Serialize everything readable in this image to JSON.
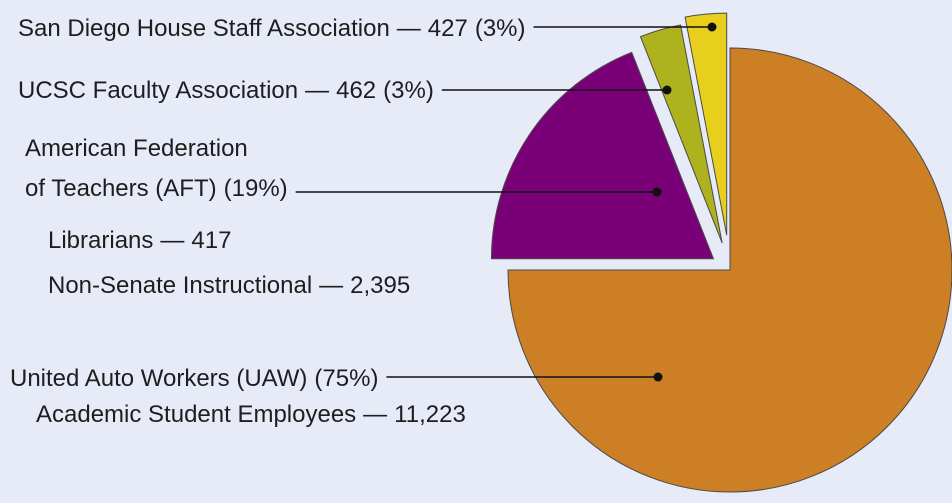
{
  "chart_data": {
    "type": "pie",
    "categories": [
      [
        "San Diego House Staff Association"
      ],
      [
        "UCSC Faculty Association"
      ],
      [
        "American Federation",
        "of Teachers (AFT)"
      ],
      [
        "United Auto Workers (UAW)"
      ]
    ],
    "values": [
      3,
      3,
      19,
      75
    ],
    "value_labels": [
      "(3%)",
      "(3%)",
      "(19%)",
      "(75%)"
    ],
    "colors": [
      "#e8cf1e",
      "#adb21e",
      "#7a0077",
      "#cc7f24"
    ],
    "separator": "—",
    "members": [
      [
        {
          "value": 427,
          "label": "427"
        }
      ],
      [
        {
          "value": 462,
          "label": "462"
        }
      ],
      [
        {
          "name": "Librarians",
          "value": 417,
          "label": "417"
        },
        {
          "name": "Non-Senate Instructional",
          "value": 2395,
          "label": "2,395"
        }
      ],
      [
        {
          "name": "Academic Student Employees",
          "value": 11223,
          "label": "11,223"
        }
      ]
    ]
  }
}
